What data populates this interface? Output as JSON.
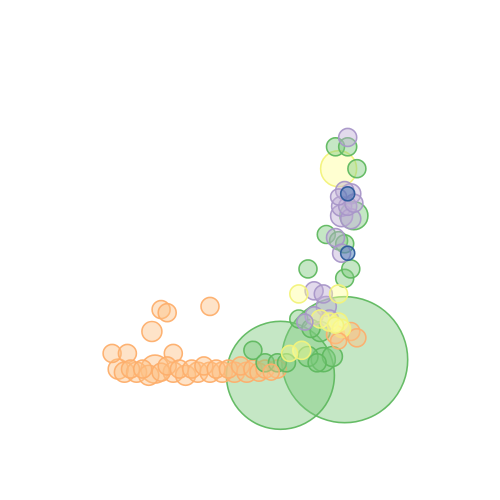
{
  "chart_data": {
    "type": "scatter",
    "title": "",
    "xlabel": "",
    "ylabel": "",
    "axes_visible": false,
    "grid": false,
    "legend": "none",
    "xlim": [
      0,
      100
    ],
    "ylim": [
      0,
      100
    ],
    "series": [
      {
        "color": "#fdc086",
        "stroke": "#fdae6b",
        "points": [
          {
            "x": 2,
            "y": 20,
            "s": 9
          },
          {
            "x": 7,
            "y": 20,
            "s": 9
          },
          {
            "x": 18,
            "y": 34,
            "s": 9
          },
          {
            "x": 20,
            "y": 33,
            "s": 9
          },
          {
            "x": 34,
            "y": 35,
            "s": 9
          },
          {
            "x": 15,
            "y": 27,
            "s": 10
          },
          {
            "x": 22,
            "y": 20,
            "s": 9
          },
          {
            "x": 4,
            "y": 15,
            "s": 10
          },
          {
            "x": 6,
            "y": 14,
            "s": 10
          },
          {
            "x": 8,
            "y": 15,
            "s": 9
          },
          {
            "x": 10,
            "y": 14,
            "s": 10
          },
          {
            "x": 12,
            "y": 15,
            "s": 9
          },
          {
            "x": 14,
            "y": 13,
            "s": 10
          },
          {
            "x": 16,
            "y": 15,
            "s": 14
          },
          {
            "x": 18,
            "y": 14,
            "s": 9
          },
          {
            "x": 20,
            "y": 16,
            "s": 9
          },
          {
            "x": 22,
            "y": 14,
            "s": 10
          },
          {
            "x": 24,
            "y": 15,
            "s": 9
          },
          {
            "x": 26,
            "y": 13,
            "s": 10
          },
          {
            "x": 28,
            "y": 15,
            "s": 9
          },
          {
            "x": 30,
            "y": 14,
            "s": 10
          },
          {
            "x": 32,
            "y": 16,
            "s": 9
          },
          {
            "x": 34,
            "y": 14,
            "s": 10
          },
          {
            "x": 36,
            "y": 15,
            "s": 9
          },
          {
            "x": 38,
            "y": 14,
            "s": 10
          },
          {
            "x": 40,
            "y": 15,
            "s": 9
          },
          {
            "x": 42,
            "y": 14,
            "s": 10
          },
          {
            "x": 44,
            "y": 16,
            "s": 9
          },
          {
            "x": 46,
            "y": 14,
            "s": 10
          },
          {
            "x": 48,
            "y": 15,
            "s": 9
          },
          {
            "x": 50,
            "y": 14,
            "s": 9
          },
          {
            "x": 52,
            "y": 15,
            "s": 9
          },
          {
            "x": 54,
            "y": 14,
            "s": 8
          },
          {
            "x": 56,
            "y": 15,
            "s": 9
          },
          {
            "x": 75,
            "y": 26,
            "s": 9
          },
          {
            "x": 80,
            "y": 27,
            "s": 9
          },
          {
            "x": 76,
            "y": 24,
            "s": 8
          },
          {
            "x": 82,
            "y": 25,
            "s": 9
          }
        ]
      },
      {
        "color": "#7fc97f",
        "stroke": "#5fb85f",
        "points": [
          {
            "x": 78,
            "y": 18,
            "s": 63
          },
          {
            "x": 57,
            "y": 13,
            "s": 54
          },
          {
            "x": 75,
            "y": 86,
            "s": 9
          },
          {
            "x": 79,
            "y": 86,
            "s": 9
          },
          {
            "x": 82,
            "y": 79,
            "s": 9
          },
          {
            "x": 81,
            "y": 64,
            "s": 14
          },
          {
            "x": 72,
            "y": 58,
            "s": 9
          },
          {
            "x": 76,
            "y": 56,
            "s": 9
          },
          {
            "x": 78,
            "y": 55,
            "s": 9
          },
          {
            "x": 78,
            "y": 44,
            "s": 9
          },
          {
            "x": 80,
            "y": 47,
            "s": 9
          },
          {
            "x": 66,
            "y": 47,
            "s": 9
          },
          {
            "x": 63,
            "y": 31,
            "s": 9
          },
          {
            "x": 67,
            "y": 28,
            "s": 9
          },
          {
            "x": 70,
            "y": 27,
            "s": 10
          },
          {
            "x": 66,
            "y": 19,
            "s": 10
          },
          {
            "x": 69,
            "y": 17,
            "s": 9
          },
          {
            "x": 71,
            "y": 18,
            "s": 12
          },
          {
            "x": 74,
            "y": 19,
            "s": 10
          },
          {
            "x": 48,
            "y": 21,
            "s": 9
          },
          {
            "x": 52,
            "y": 17,
            "s": 9
          },
          {
            "x": 56,
            "y": 17,
            "s": 9
          },
          {
            "x": 59,
            "y": 17,
            "s": 9
          }
        ]
      },
      {
        "color": "#beaed4",
        "stroke": "#a896c8",
        "points": [
          {
            "x": 79,
            "y": 89,
            "s": 9
          },
          {
            "x": 78,
            "y": 72,
            "s": 9
          },
          {
            "x": 80,
            "y": 71,
            "s": 10
          },
          {
            "x": 76,
            "y": 70,
            "s": 8
          },
          {
            "x": 77,
            "y": 67,
            "s": 10
          },
          {
            "x": 79,
            "y": 67,
            "s": 9
          },
          {
            "x": 81,
            "y": 68,
            "s": 9
          },
          {
            "x": 77,
            "y": 64,
            "s": 11
          },
          {
            "x": 80,
            "y": 63,
            "s": 10
          },
          {
            "x": 75,
            "y": 57,
            "s": 9
          },
          {
            "x": 77,
            "y": 52,
            "s": 9
          },
          {
            "x": 68,
            "y": 40,
            "s": 9
          },
          {
            "x": 71,
            "y": 39,
            "s": 9
          },
          {
            "x": 72,
            "y": 35,
            "s": 10
          },
          {
            "x": 73,
            "y": 31,
            "s": 9
          },
          {
            "x": 68,
            "y": 32,
            "s": 9
          },
          {
            "x": 65,
            "y": 30,
            "s": 8
          }
        ]
      },
      {
        "color": "#ffff99",
        "stroke": "#f2f27a",
        "points": [
          {
            "x": 76,
            "y": 79,
            "s": 18
          },
          {
            "x": 63,
            "y": 39,
            "s": 9
          },
          {
            "x": 76,
            "y": 39,
            "s": 9
          },
          {
            "x": 76,
            "y": 30,
            "s": 9
          },
          {
            "x": 70,
            "y": 31,
            "s": 9
          },
          {
            "x": 73,
            "y": 30,
            "s": 9
          },
          {
            "x": 77,
            "y": 28,
            "s": 9
          },
          {
            "x": 75,
            "y": 29,
            "s": 8
          },
          {
            "x": 64,
            "y": 21,
            "s": 9
          },
          {
            "x": 60,
            "y": 20,
            "s": 8
          }
        ]
      },
      {
        "color": "#386cb0",
        "stroke": "#2a5a9a",
        "points": [
          {
            "x": 79,
            "y": 71,
            "s": 7
          },
          {
            "x": 79,
            "y": 52,
            "s": 7
          }
        ]
      }
    ]
  }
}
